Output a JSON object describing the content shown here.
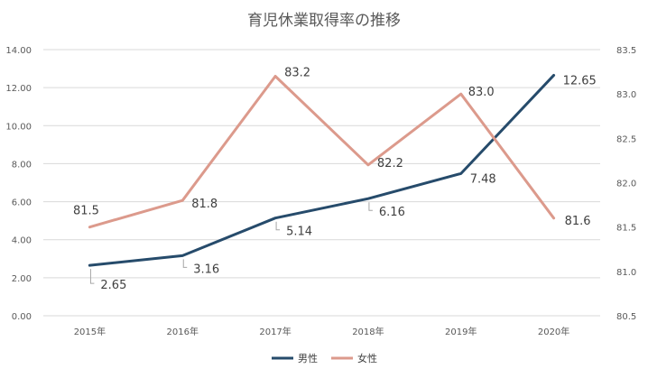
{
  "chart_data": {
    "type": "line",
    "title": "育児休業取得率の推移",
    "categories": [
      "2015年",
      "2016年",
      "2017年",
      "2018年",
      "2019年",
      "2020年"
    ],
    "y_left": {
      "ylim": [
        0,
        14
      ],
      "ticks": [
        "0.00",
        "2.00",
        "4.00",
        "6.00",
        "8.00",
        "10.00",
        "12.00",
        "14.00"
      ]
    },
    "y_right": {
      "ylim": [
        80.5,
        83.5
      ],
      "ticks": [
        "80.5",
        "81.0",
        "81.5",
        "82.0",
        "82.5",
        "83.0",
        "83.5"
      ]
    },
    "grid": true,
    "legend_position": "bottom",
    "series": [
      {
        "name": "男性",
        "axis": "left",
        "color": "#264b6b",
        "values": [
          2.65,
          3.16,
          5.14,
          6.16,
          7.48,
          12.65
        ],
        "labels": [
          "2.65",
          "3.16",
          "5.14",
          "6.16",
          "7.48",
          "12.65"
        ]
      },
      {
        "name": "女性",
        "axis": "right",
        "color": "#dc9a8c",
        "values": [
          81.5,
          81.8,
          83.2,
          82.2,
          83.0,
          81.6
        ],
        "labels": [
          "81.5",
          "81.8",
          "83.2",
          "82.2",
          "83.0",
          "81.6"
        ]
      }
    ]
  }
}
